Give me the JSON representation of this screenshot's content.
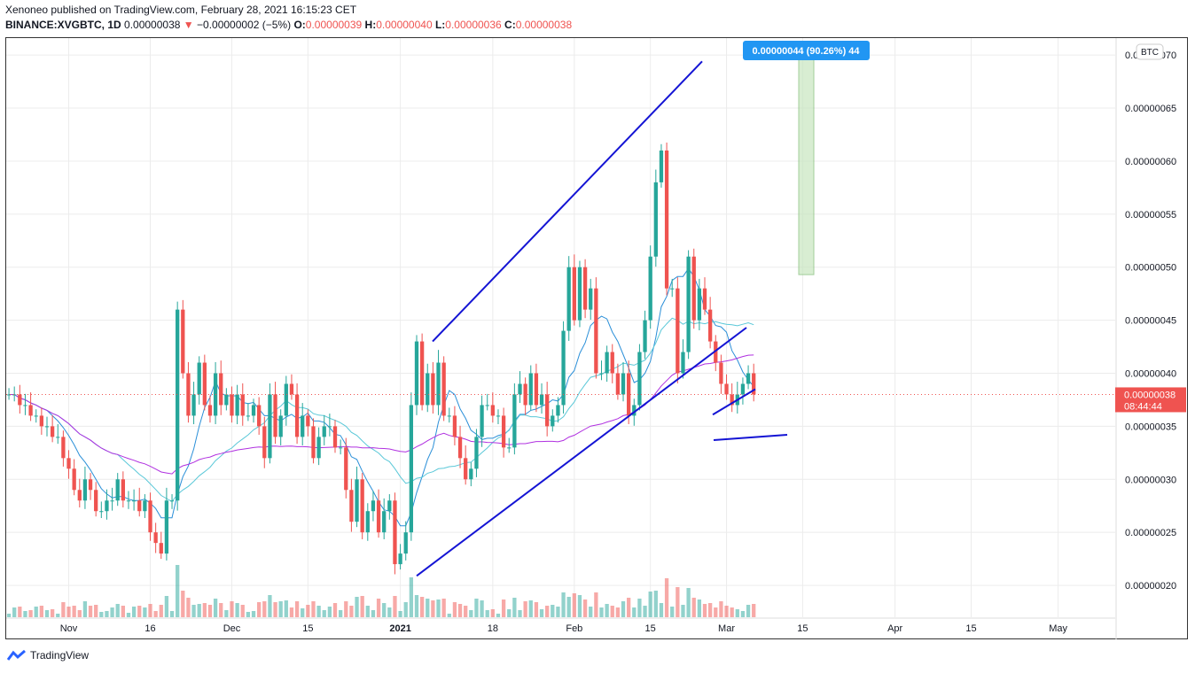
{
  "header": {
    "line1": "Xenoneo published on TradingView.com, February 28, 2021 16:15:23 CET",
    "symbol": "BINANCE:XVGBTC, 1D",
    "last": "0.00000038",
    "change_arrow": "▼",
    "change": "−0.00000002 (−5%)",
    "o_label": "O:",
    "o_val": "0.00000039",
    "h_label": "H:",
    "h_val": "0.00000040",
    "l_label": "L:",
    "l_val": "0.00000036",
    "c_label": "C:",
    "c_val": "0.00000038"
  },
  "footer": {
    "brand": "TradingView",
    "logo_icon": "tradingview-logo-icon"
  },
  "colors": {
    "up": "#26a69a",
    "down": "#ef5350",
    "trend": "#1414d4",
    "ma_purple": "#b030e0",
    "ma_blue": "#2a8fd8",
    "ma_cyan": "#5ac8d8",
    "ma_red": "#e04040",
    "ma_green": "#40a040"
  },
  "chart_data": {
    "type": "candlestick",
    "currency_badge": "BTC",
    "price_ticks": [
      "0.00000020",
      "0.00000025",
      "0.00000030",
      "0.00000035",
      "0.00000040",
      "0.00000045",
      "0.00000050",
      "0.00000055",
      "0.00000060",
      "0.00000065",
      "0.00000070"
    ],
    "ylim": [
      1.7e-07,
      7.16e-07
    ],
    "x_ticks": [
      {
        "label": "Nov",
        "bar": 11
      },
      {
        "label": "16",
        "bar": 26
      },
      {
        "label": "Dec",
        "bar": 41
      },
      {
        "label": "15",
        "bar": 55
      },
      {
        "label": "2021",
        "bar": 72
      },
      {
        "label": "18",
        "bar": 89
      },
      {
        "label": "Feb",
        "bar": 104
      },
      {
        "label": "15",
        "bar": 118
      },
      {
        "label": "Mar",
        "bar": 132
      },
      {
        "label": "15",
        "bar": 146
      },
      {
        "label": "Apr",
        "bar": 163
      },
      {
        "label": "15",
        "bar": 177
      },
      {
        "label": "May",
        "bar": 193
      }
    ],
    "bar_count_visible": 204,
    "current_price_label": "0.00000038",
    "countdown": "08:44:44",
    "measure_label": "0.00000044 (90.26%) 44",
    "closes": [
      38,
      38,
      37,
      37,
      36,
      36,
      35,
      35,
      34,
      34,
      32,
      31,
      29,
      28,
      30,
      29,
      27,
      27,
      28,
      28,
      30,
      28,
      28,
      28,
      27,
      28,
      25,
      24,
      23,
      28,
      28,
      46,
      40,
      36,
      38,
      41,
      37,
      36,
      40,
      37,
      38,
      36,
      38,
      36,
      36,
      37,
      35,
      32,
      38,
      34,
      36,
      39,
      38,
      34,
      36,
      35,
      32,
      34,
      35,
      35,
      33,
      33,
      29,
      26,
      30,
      25,
      27,
      28,
      25,
      27,
      28,
      22,
      23,
      25,
      37,
      43,
      37,
      40,
      37,
      41,
      36,
      36,
      34,
      32,
      30,
      31,
      34,
      37,
      37,
      36,
      36,
      33,
      33,
      38,
      39,
      37,
      40,
      37,
      38,
      35,
      36,
      37,
      44,
      50,
      45,
      50,
      46,
      48,
      40,
      40,
      42,
      40,
      38,
      40,
      36,
      37,
      42,
      45,
      51,
      58,
      61,
      48,
      48,
      40,
      42,
      51,
      45,
      48,
      46,
      43,
      41,
      39,
      38,
      37,
      38,
      39,
      40,
      38
    ],
    "volume_note": "volume histogram shown at bottom",
    "trendlines": "rising channel"
  }
}
